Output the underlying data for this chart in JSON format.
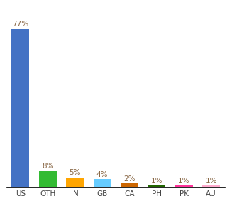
{
  "categories": [
    "US",
    "OTH",
    "IN",
    "GB",
    "CA",
    "PH",
    "PK",
    "AU"
  ],
  "values": [
    77,
    8,
    5,
    4,
    2,
    1,
    1,
    1
  ],
  "bar_colors": [
    "#4472C4",
    "#33BB33",
    "#FFA500",
    "#66CCFF",
    "#CC6600",
    "#226600",
    "#FF3399",
    "#FFAACC"
  ],
  "label_color": "#886644",
  "background_color": "#FFFFFF",
  "ylim": [
    0,
    88
  ],
  "bar_width": 0.65,
  "tick_fontsize": 7.5,
  "label_fontsize": 7.5,
  "xtick_color": "#444444"
}
